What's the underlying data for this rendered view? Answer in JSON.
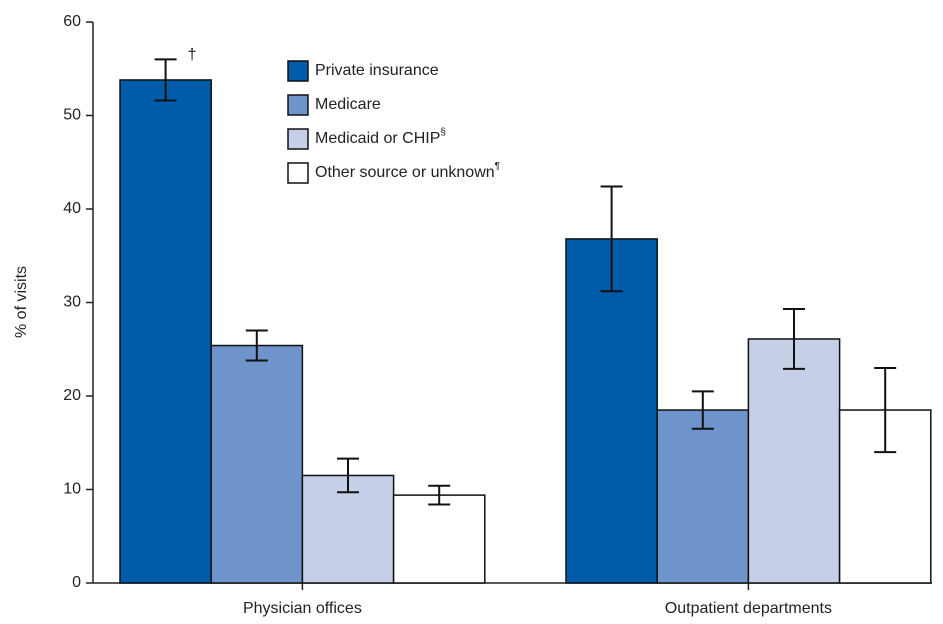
{
  "chart_data": {
    "type": "bar",
    "y_label": "% of visits",
    "categories": [
      "Physician offices",
      "Outpatient departments"
    ],
    "series": [
      {
        "name": "Private insurance",
        "color": "#005ba8",
        "values": [
          53.8,
          36.8
        ],
        "errors": [
          2.2,
          5.6
        ]
      },
      {
        "name": "Medicare",
        "color": "#6f93cb",
        "values": [
          25.4,
          18.5
        ],
        "errors": [
          1.6,
          2.0
        ]
      },
      {
        "name": "Medicaid or CHIP",
        "name_mark": "§",
        "color": "#c5cfe8",
        "values": [
          11.5,
          26.1
        ],
        "errors": [
          1.8,
          3.2
        ]
      },
      {
        "name": "Other source or unknown",
        "name_mark": "¶",
        "color": "#ffffff",
        "values": [
          9.4,
          18.5
        ],
        "errors": [
          1.0,
          4.5
        ]
      }
    ],
    "annotations": [
      "†"
    ],
    "ylim": [
      0,
      60
    ],
    "yticks": [
      0,
      10,
      20,
      30,
      40,
      50,
      60
    ],
    "grid": false
  }
}
